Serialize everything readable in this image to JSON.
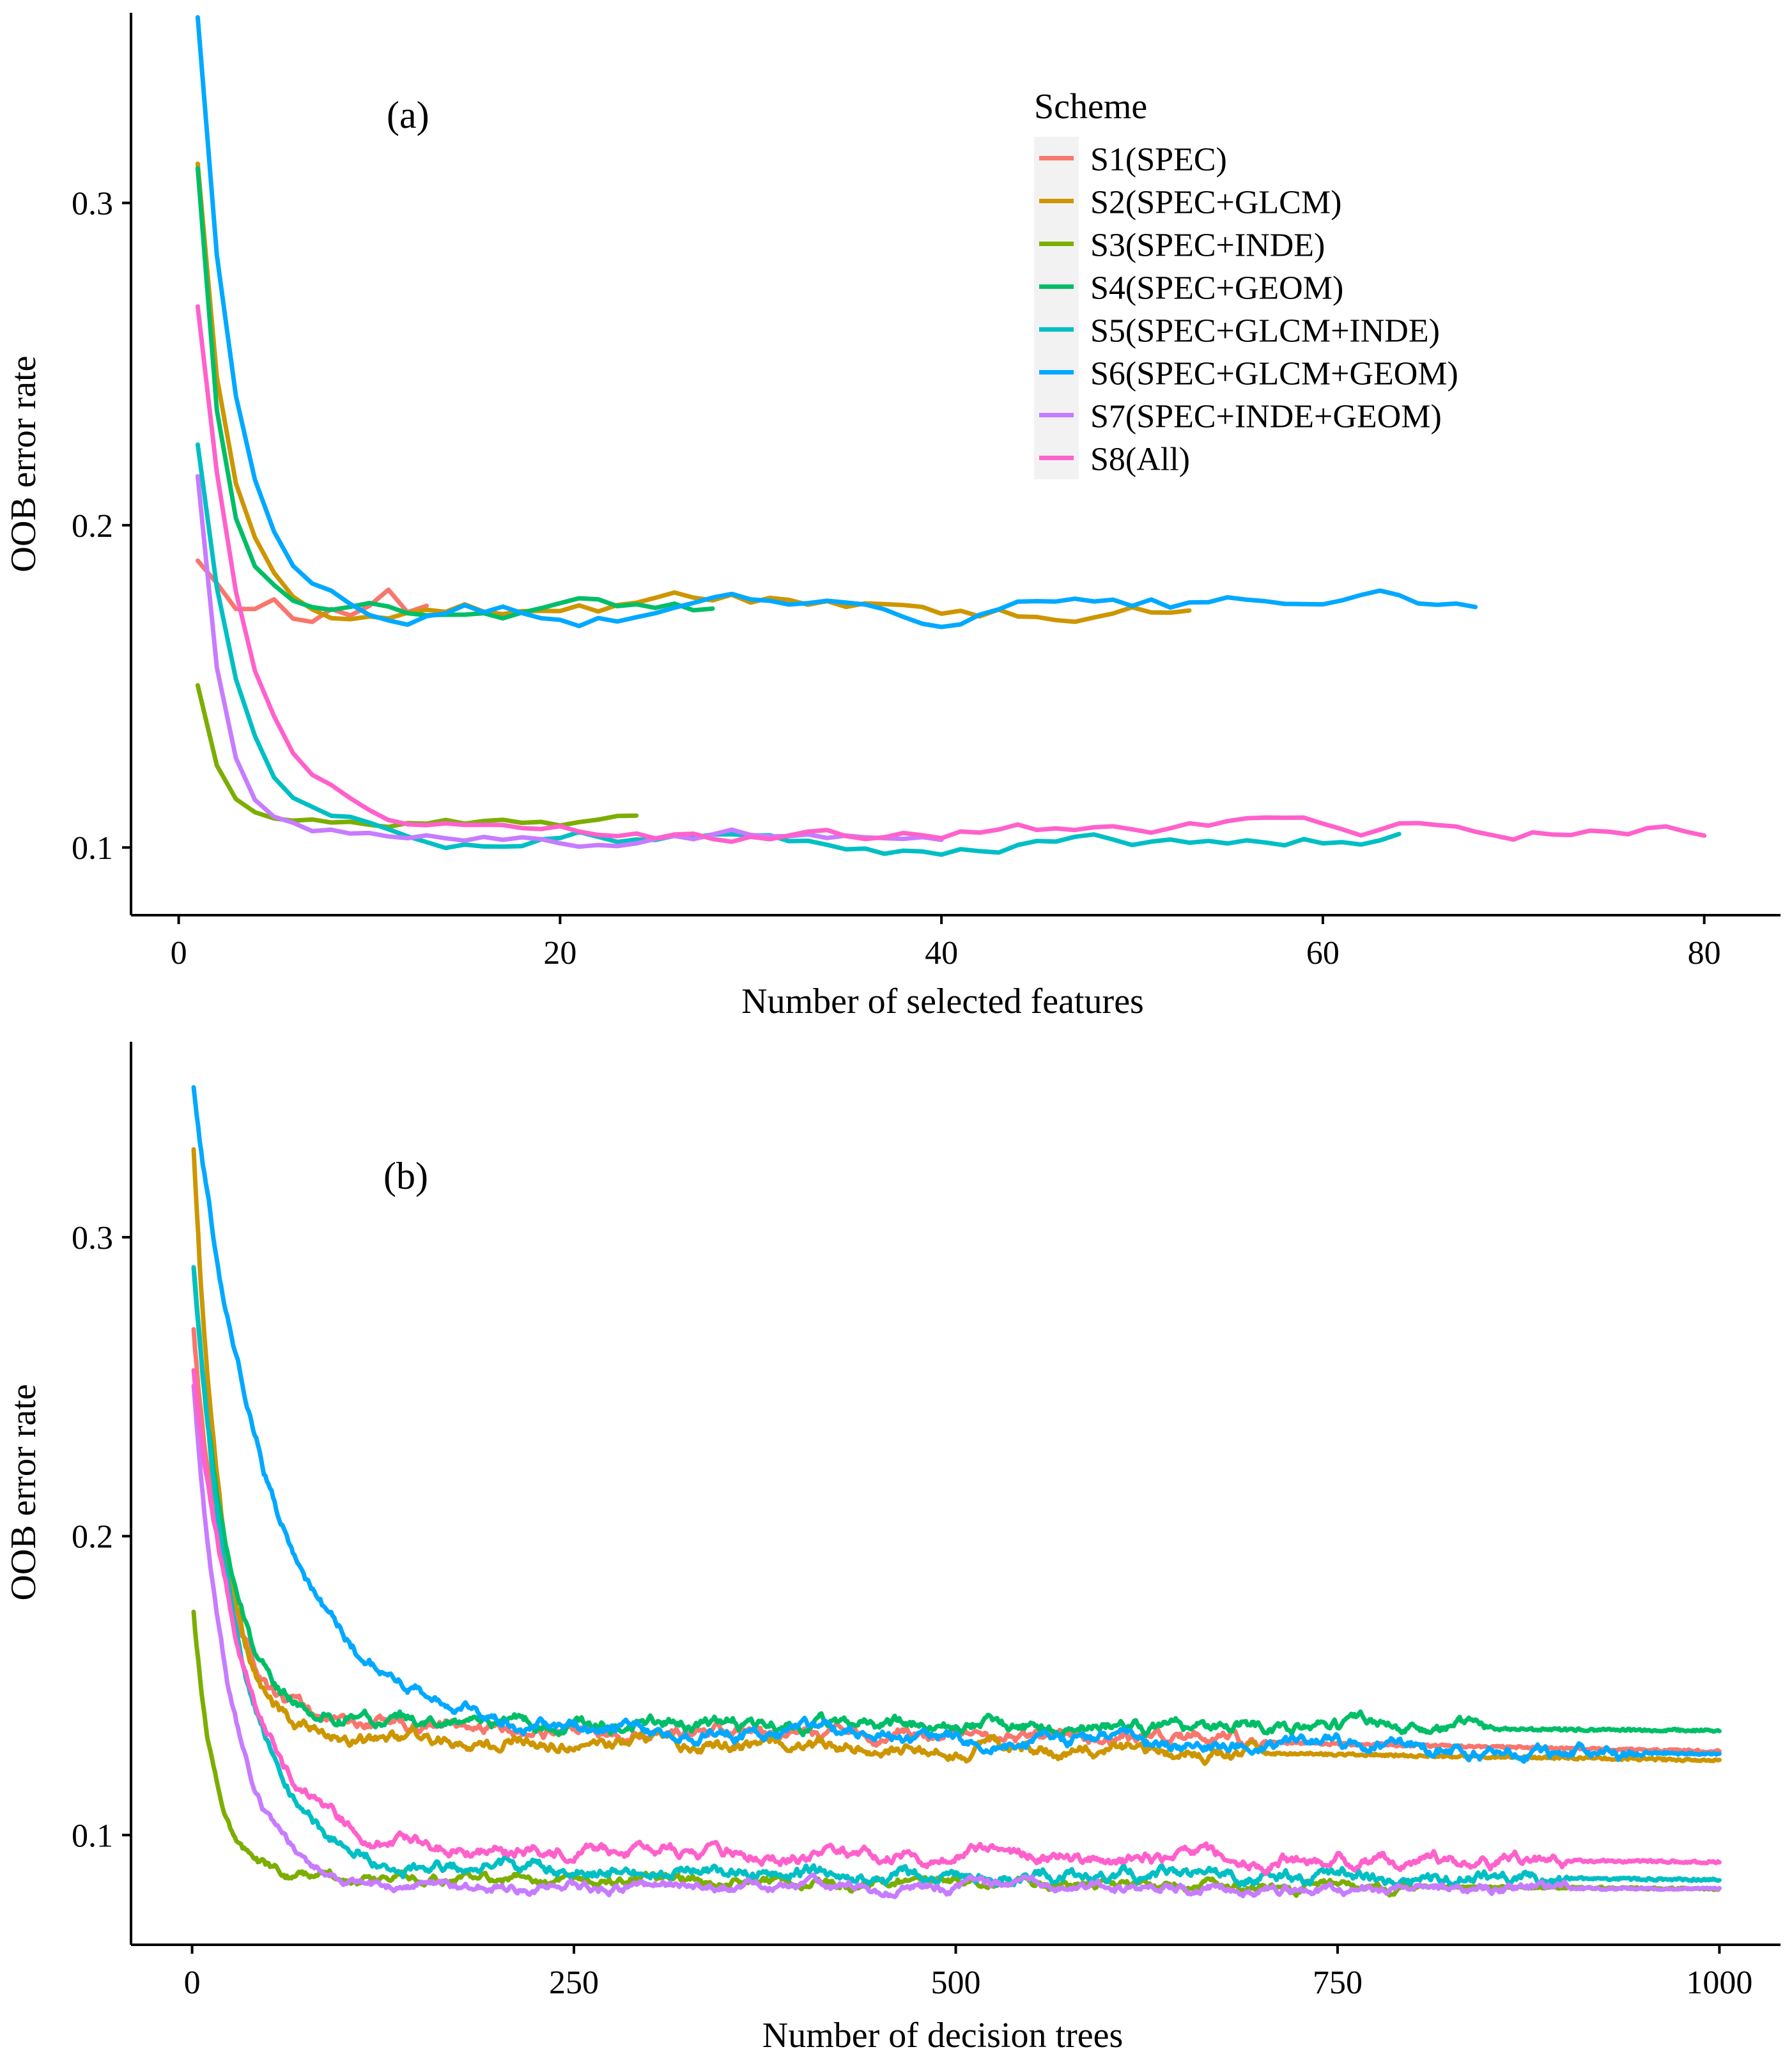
{
  "colors": {
    "S1": "#F8766D",
    "S2": "#CD9600",
    "S3": "#7CAE00",
    "S4": "#00BE67",
    "S5": "#00BFC4",
    "S6": "#00A9FF",
    "S7": "#C77CFF",
    "S8": "#FF61CC",
    "legend_key_bg": "#F2F2F2"
  },
  "legend": {
    "title": "Scheme",
    "entries": [
      {
        "key": "S1",
        "label": "S1(SPEC)"
      },
      {
        "key": "S2",
        "label": "S2(SPEC+GLCM)"
      },
      {
        "key": "S3",
        "label": "S3(SPEC+INDE)"
      },
      {
        "key": "S4",
        "label": "S4(SPEC+GEOM)"
      },
      {
        "key": "S5",
        "label": "S5(SPEC+GLCM+INDE)"
      },
      {
        "key": "S6",
        "label": "S6(SPEC+GLCM+GEOM)"
      },
      {
        "key": "S7",
        "label": "S7(SPEC+INDE+GEOM)"
      },
      {
        "key": "S8",
        "label": "S8(All)"
      }
    ]
  },
  "chart_data": [
    {
      "type": "line",
      "panel_label": "(a)",
      "xlabel": "Number of selected features",
      "ylabel": "OOB error rate",
      "xlim": [
        -2.5,
        84
      ],
      "ylim": [
        0.079,
        0.359
      ],
      "xticks": [
        0,
        20,
        40,
        60,
        80
      ],
      "yticks": [
        0.1,
        0.2,
        0.3
      ],
      "xtick_labels": [
        "0",
        "20",
        "40",
        "60",
        "80"
      ],
      "ytick_labels": [
        "0.1",
        "0.2",
        "0.3"
      ],
      "grid": false,
      "legend_position": "top-right",
      "series": [
        {
          "key": "S1",
          "name": "S1(SPEC)",
          "x": [
            1,
            2,
            3,
            4,
            5,
            6,
            7,
            8,
            9,
            10,
            11,
            12,
            13
          ],
          "values": [
            0.189,
            0.182,
            0.174,
            0.174,
            0.177,
            0.171,
            0.17,
            0.174,
            0.172,
            0.175,
            0.18,
            0.173,
            0.175
          ]
        },
        {
          "key": "S2",
          "name": "S2(SPEC+GLCM)",
          "formula": "decay",
          "start": 0.312,
          "plateau": 0.172,
          "tau": 1.6,
          "n": 53,
          "noise": 0.005,
          "seed": 2
        },
        {
          "key": "S3",
          "name": "S3(SPEC+INDE)",
          "formula": "decay",
          "start": 0.15,
          "plateau": 0.105,
          "tau": 1.2,
          "n": 24,
          "noise": 0.003,
          "seed": 3
        },
        {
          "key": "S4",
          "name": "S4(SPEC+GEOM)",
          "formula": "decay",
          "start": 0.31,
          "plateau": 0.173,
          "tau": 1.3,
          "n": 28,
          "noise": 0.004,
          "seed": 4
        },
        {
          "key": "S5",
          "name": "S5(SPEC+GLCM+INDE)",
          "formula": "decay",
          "start": 0.224,
          "plateau": 0.102,
          "tau": 2.2,
          "n": 64,
          "noise": 0.004,
          "seed": 5
        },
        {
          "key": "S6",
          "name": "S6(SPEC+GLCM+GEOM)",
          "formula": "decay",
          "start": 0.356,
          "plateau": 0.175,
          "tau": 2.0,
          "n": 68,
          "noise": 0.005,
          "seed": 6
        },
        {
          "key": "S7",
          "name": "S7(SPEC+INDE+GEOM)",
          "formula": "decay",
          "start": 0.214,
          "plateau": 0.104,
          "tau": 1.3,
          "n": 40,
          "noise": 0.003,
          "seed": 7
        },
        {
          "key": "S8",
          "name": "S8(All)",
          "formula": "decay",
          "start": 0.266,
          "plateau": 0.106,
          "tau": 2.5,
          "n": 80,
          "noise": 0.004,
          "seed": 8
        }
      ]
    },
    {
      "type": "line",
      "panel_label": "(b)",
      "xlabel": "Number of decision trees",
      "ylabel": "OOB error rate",
      "xlim": [
        -40,
        1040
      ],
      "ylim": [
        0.0633,
        0.3654
      ],
      "xticks": [
        0,
        250,
        500,
        750,
        1000
      ],
      "yticks": [
        0.1,
        0.2,
        0.3
      ],
      "xtick_labels": [
        "0",
        "250",
        "500",
        "750",
        "1000"
      ],
      "ytick_labels": [
        "0.1",
        "0.2",
        "0.3"
      ],
      "grid": false,
      "series": [
        {
          "key": "S1",
          "name": "S1(SPEC)",
          "formula": "decay",
          "start": 0.27,
          "plateau": 0.138,
          "drift": -0.01,
          "tau": 20,
          "n": 1000,
          "noise": 0.0025,
          "flat_after": 700,
          "seed": 11
        },
        {
          "key": "S2",
          "name": "S2(SPEC+GLCM)",
          "formula": "decay",
          "start": 0.33,
          "plateau": 0.133,
          "drift": -0.008,
          "tau": 18,
          "n": 1000,
          "noise": 0.0025,
          "flat_after": 700,
          "seed": 12
        },
        {
          "key": "S3",
          "name": "S3(SPEC+INDE)",
          "formula": "decay",
          "start": 0.175,
          "plateau": 0.086,
          "drift": -0.004,
          "tau": 15,
          "n": 1000,
          "noise": 0.002,
          "flat_after": 800,
          "seed": 13
        },
        {
          "key": "S4",
          "name": "S4(SPEC+GEOM)",
          "formula": "decay",
          "start": 0.29,
          "plateau": 0.138,
          "drift": -0.003,
          "tau": 22,
          "n": 1000,
          "noise": 0.0025,
          "flat_after": 850,
          "seed": 14
        },
        {
          "key": "S5",
          "name": "S5(SPEC+GLCM+INDE)",
          "formula": "decay",
          "start": 0.29,
          "plateau": 0.09,
          "drift": -0.005,
          "tau": 30,
          "n": 1000,
          "noise": 0.0025,
          "flat_after": 900,
          "seed": 15
        },
        {
          "key": "S6",
          "name": "S6(SPEC+GLCM+GEOM)",
          "formula": "decay",
          "start": 0.35,
          "plateau": 0.138,
          "drift": -0.011,
          "tau": 50,
          "n": 1000,
          "noise": 0.0025,
          "flat_after": 950,
          "seed": 16
        },
        {
          "key": "S7",
          "name": "S7(SPEC+INDE+GEOM)",
          "formula": "decay",
          "start": 0.25,
          "plateau": 0.083,
          "drift": -0.001,
          "tau": 25,
          "n": 1000,
          "noise": 0.002,
          "flat_after": 900,
          "seed": 17
        },
        {
          "key": "S8",
          "name": "S8(All)",
          "formula": "decay",
          "start": 0.255,
          "plateau": 0.095,
          "drift": -0.004,
          "tau": 35,
          "n": 1000,
          "noise": 0.0025,
          "flat_after": 900,
          "seed": 18
        }
      ]
    }
  ]
}
